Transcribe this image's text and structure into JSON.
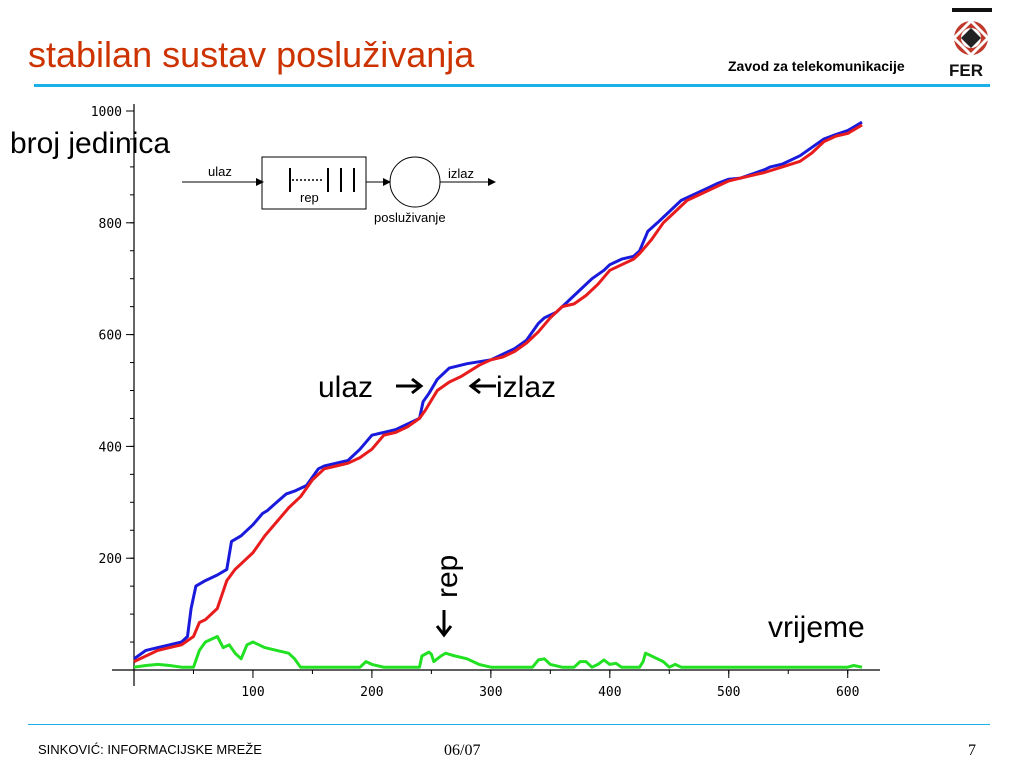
{
  "slide": {
    "title": "stabilan sustav posluživanja",
    "institute": "Zavod za telekomunikacije",
    "footer_left": "SINKOVIĆ: INFORMACIJSKE MREŽE",
    "footer_mid": "06/07",
    "page_number": "7"
  },
  "colors": {
    "title": "#cc3300",
    "rule": "#1ab0e8",
    "arrivals": "#1a1adc",
    "departures": "#e81c1c",
    "queue": "#22e022"
  },
  "chart_data": {
    "type": "line",
    "ylabel": "broj jedinica",
    "xlabel": "vrijeme",
    "xlim": [
      0,
      630
    ],
    "ylim": [
      0,
      1000
    ],
    "xticks": [
      100,
      200,
      300,
      400,
      500,
      600
    ],
    "yticks": [
      200,
      400,
      600,
      800,
      1000
    ],
    "grid": false,
    "annotations": {
      "arrivals": "ulaz",
      "departures": "izlaz",
      "queue": "rep"
    },
    "series": [
      {
        "name": "ulaz",
        "x": [
          0,
          10,
          20,
          30,
          40,
          45,
          48,
          52,
          60,
          70,
          78,
          82,
          90,
          100,
          108,
          112,
          120,
          128,
          135,
          145,
          155,
          160,
          170,
          180,
          190,
          200,
          210,
          220,
          230,
          240,
          243,
          248,
          255,
          265,
          280,
          300,
          310,
          320,
          330,
          340,
          345,
          355,
          365,
          375,
          385,
          395,
          400,
          410,
          420,
          425,
          432,
          440,
          450,
          460,
          470,
          480,
          490,
          500,
          510,
          530,
          535,
          545,
          560,
          570,
          580,
          590,
          600,
          612
        ],
        "y": [
          20,
          35,
          40,
          45,
          50,
          60,
          110,
          150,
          160,
          170,
          180,
          230,
          240,
          260,
          280,
          285,
          300,
          315,
          320,
          330,
          360,
          365,
          370,
          375,
          395,
          420,
          425,
          430,
          440,
          450,
          480,
          495,
          520,
          540,
          548,
          555,
          565,
          575,
          590,
          620,
          630,
          640,
          660,
          680,
          700,
          715,
          725,
          735,
          740,
          750,
          785,
          800,
          820,
          840,
          850,
          860,
          870,
          878,
          880,
          895,
          900,
          905,
          920,
          935,
          950,
          958,
          965,
          980
        ]
      },
      {
        "name": "izlaz",
        "x": [
          0,
          10,
          20,
          30,
          40,
          50,
          55,
          60,
          70,
          78,
          85,
          90,
          100,
          110,
          120,
          130,
          140,
          150,
          160,
          170,
          180,
          190,
          200,
          210,
          220,
          230,
          240,
          245,
          255,
          265,
          275,
          290,
          300,
          310,
          320,
          330,
          340,
          350,
          360,
          370,
          380,
          390,
          400,
          410,
          420,
          425,
          435,
          445,
          455,
          465,
          475,
          485,
          500,
          510,
          530,
          545,
          560,
          570,
          580,
          590,
          600,
          612
        ],
        "y": [
          15,
          25,
          35,
          40,
          45,
          60,
          85,
          90,
          110,
          160,
          180,
          190,
          210,
          240,
          265,
          290,
          310,
          340,
          360,
          365,
          370,
          380,
          395,
          420,
          425,
          435,
          450,
          465,
          500,
          515,
          525,
          545,
          555,
          560,
          570,
          585,
          605,
          630,
          650,
          655,
          670,
          690,
          715,
          725,
          735,
          745,
          770,
          800,
          820,
          840,
          850,
          860,
          875,
          880,
          890,
          900,
          910,
          925,
          945,
          955,
          960,
          975
        ]
      },
      {
        "name": "rep",
        "x": [
          0,
          10,
          20,
          30,
          40,
          50,
          55,
          60,
          65,
          70,
          75,
          80,
          85,
          90,
          95,
          100,
          105,
          110,
          120,
          130,
          135,
          140,
          150,
          160,
          170,
          180,
          190,
          195,
          200,
          210,
          220,
          230,
          240,
          242,
          248,
          250,
          252,
          255,
          258,
          262,
          265,
          270,
          280,
          290,
          300,
          310,
          320,
          330,
          335,
          340,
          345,
          350,
          360,
          370,
          375,
          380,
          385,
          390,
          395,
          400,
          405,
          410,
          420,
          425,
          428,
          430,
          432,
          440,
          445,
          450,
          455,
          460,
          470,
          480,
          490,
          500,
          510,
          520,
          540,
          550,
          560,
          570,
          580,
          590,
          600,
          605,
          612
        ],
        "y": [
          5,
          8,
          10,
          8,
          5,
          5,
          35,
          50,
          55,
          60,
          40,
          45,
          30,
          20,
          45,
          50,
          45,
          40,
          35,
          30,
          20,
          5,
          5,
          5,
          5,
          5,
          5,
          15,
          10,
          5,
          5,
          5,
          5,
          25,
          32,
          28,
          15,
          20,
          25,
          30,
          28,
          25,
          20,
          10,
          5,
          5,
          5,
          5,
          5,
          18,
          20,
          10,
          5,
          5,
          15,
          15,
          5,
          10,
          18,
          10,
          12,
          5,
          5,
          5,
          15,
          30,
          28,
          20,
          15,
          5,
          10,
          5,
          5,
          5,
          5,
          5,
          5,
          5,
          5,
          5,
          5,
          5,
          5,
          5,
          5,
          8,
          5
        ]
      }
    ]
  },
  "diagram": {
    "input_label": "ulaz",
    "queue_label": "rep",
    "output_label": "izlaz",
    "server_label": "posluživanje"
  }
}
